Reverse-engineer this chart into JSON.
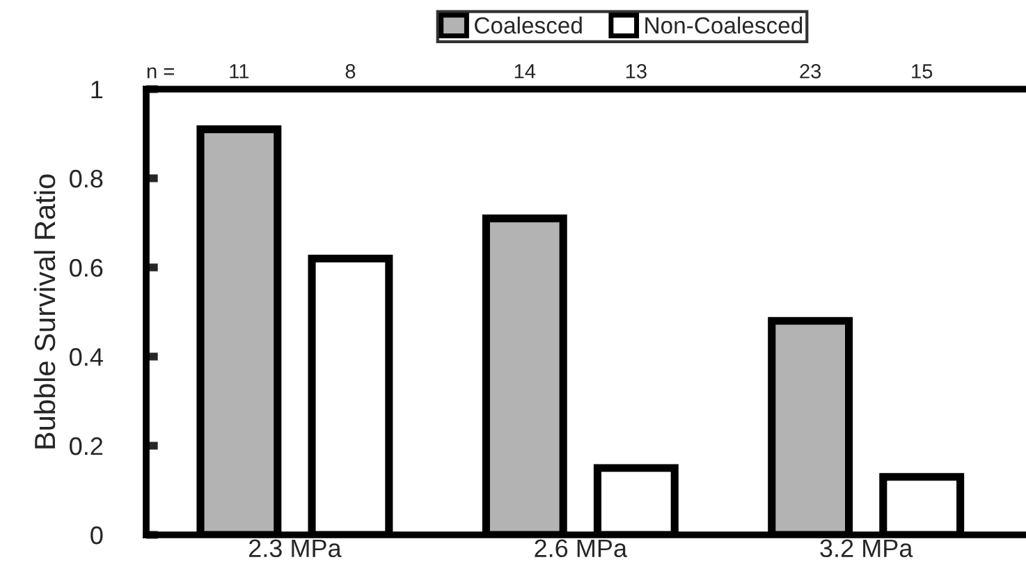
{
  "chart_data": {
    "type": "bar",
    "ylabel": "Bubble Survival Ratio",
    "categories": [
      "2.3 MPa",
      "2.6 MPa",
      "3.2 MPa"
    ],
    "series": [
      {
        "name": "Coalesced",
        "color": "#b3b3b3",
        "values": [
          0.91,
          0.71,
          0.48
        ]
      },
      {
        "name": "Non-Coalesced",
        "color": "#ffffff",
        "values": [
          0.62,
          0.15,
          0.13
        ]
      }
    ],
    "ylim": [
      0,
      1
    ],
    "yticks": [
      0,
      0.2,
      0.4,
      0.6,
      0.8,
      1
    ],
    "annotations": [
      "n =",
      "11",
      "8",
      "14",
      "13",
      "23",
      "15"
    ],
    "legend": "top",
    "grid": false
  }
}
